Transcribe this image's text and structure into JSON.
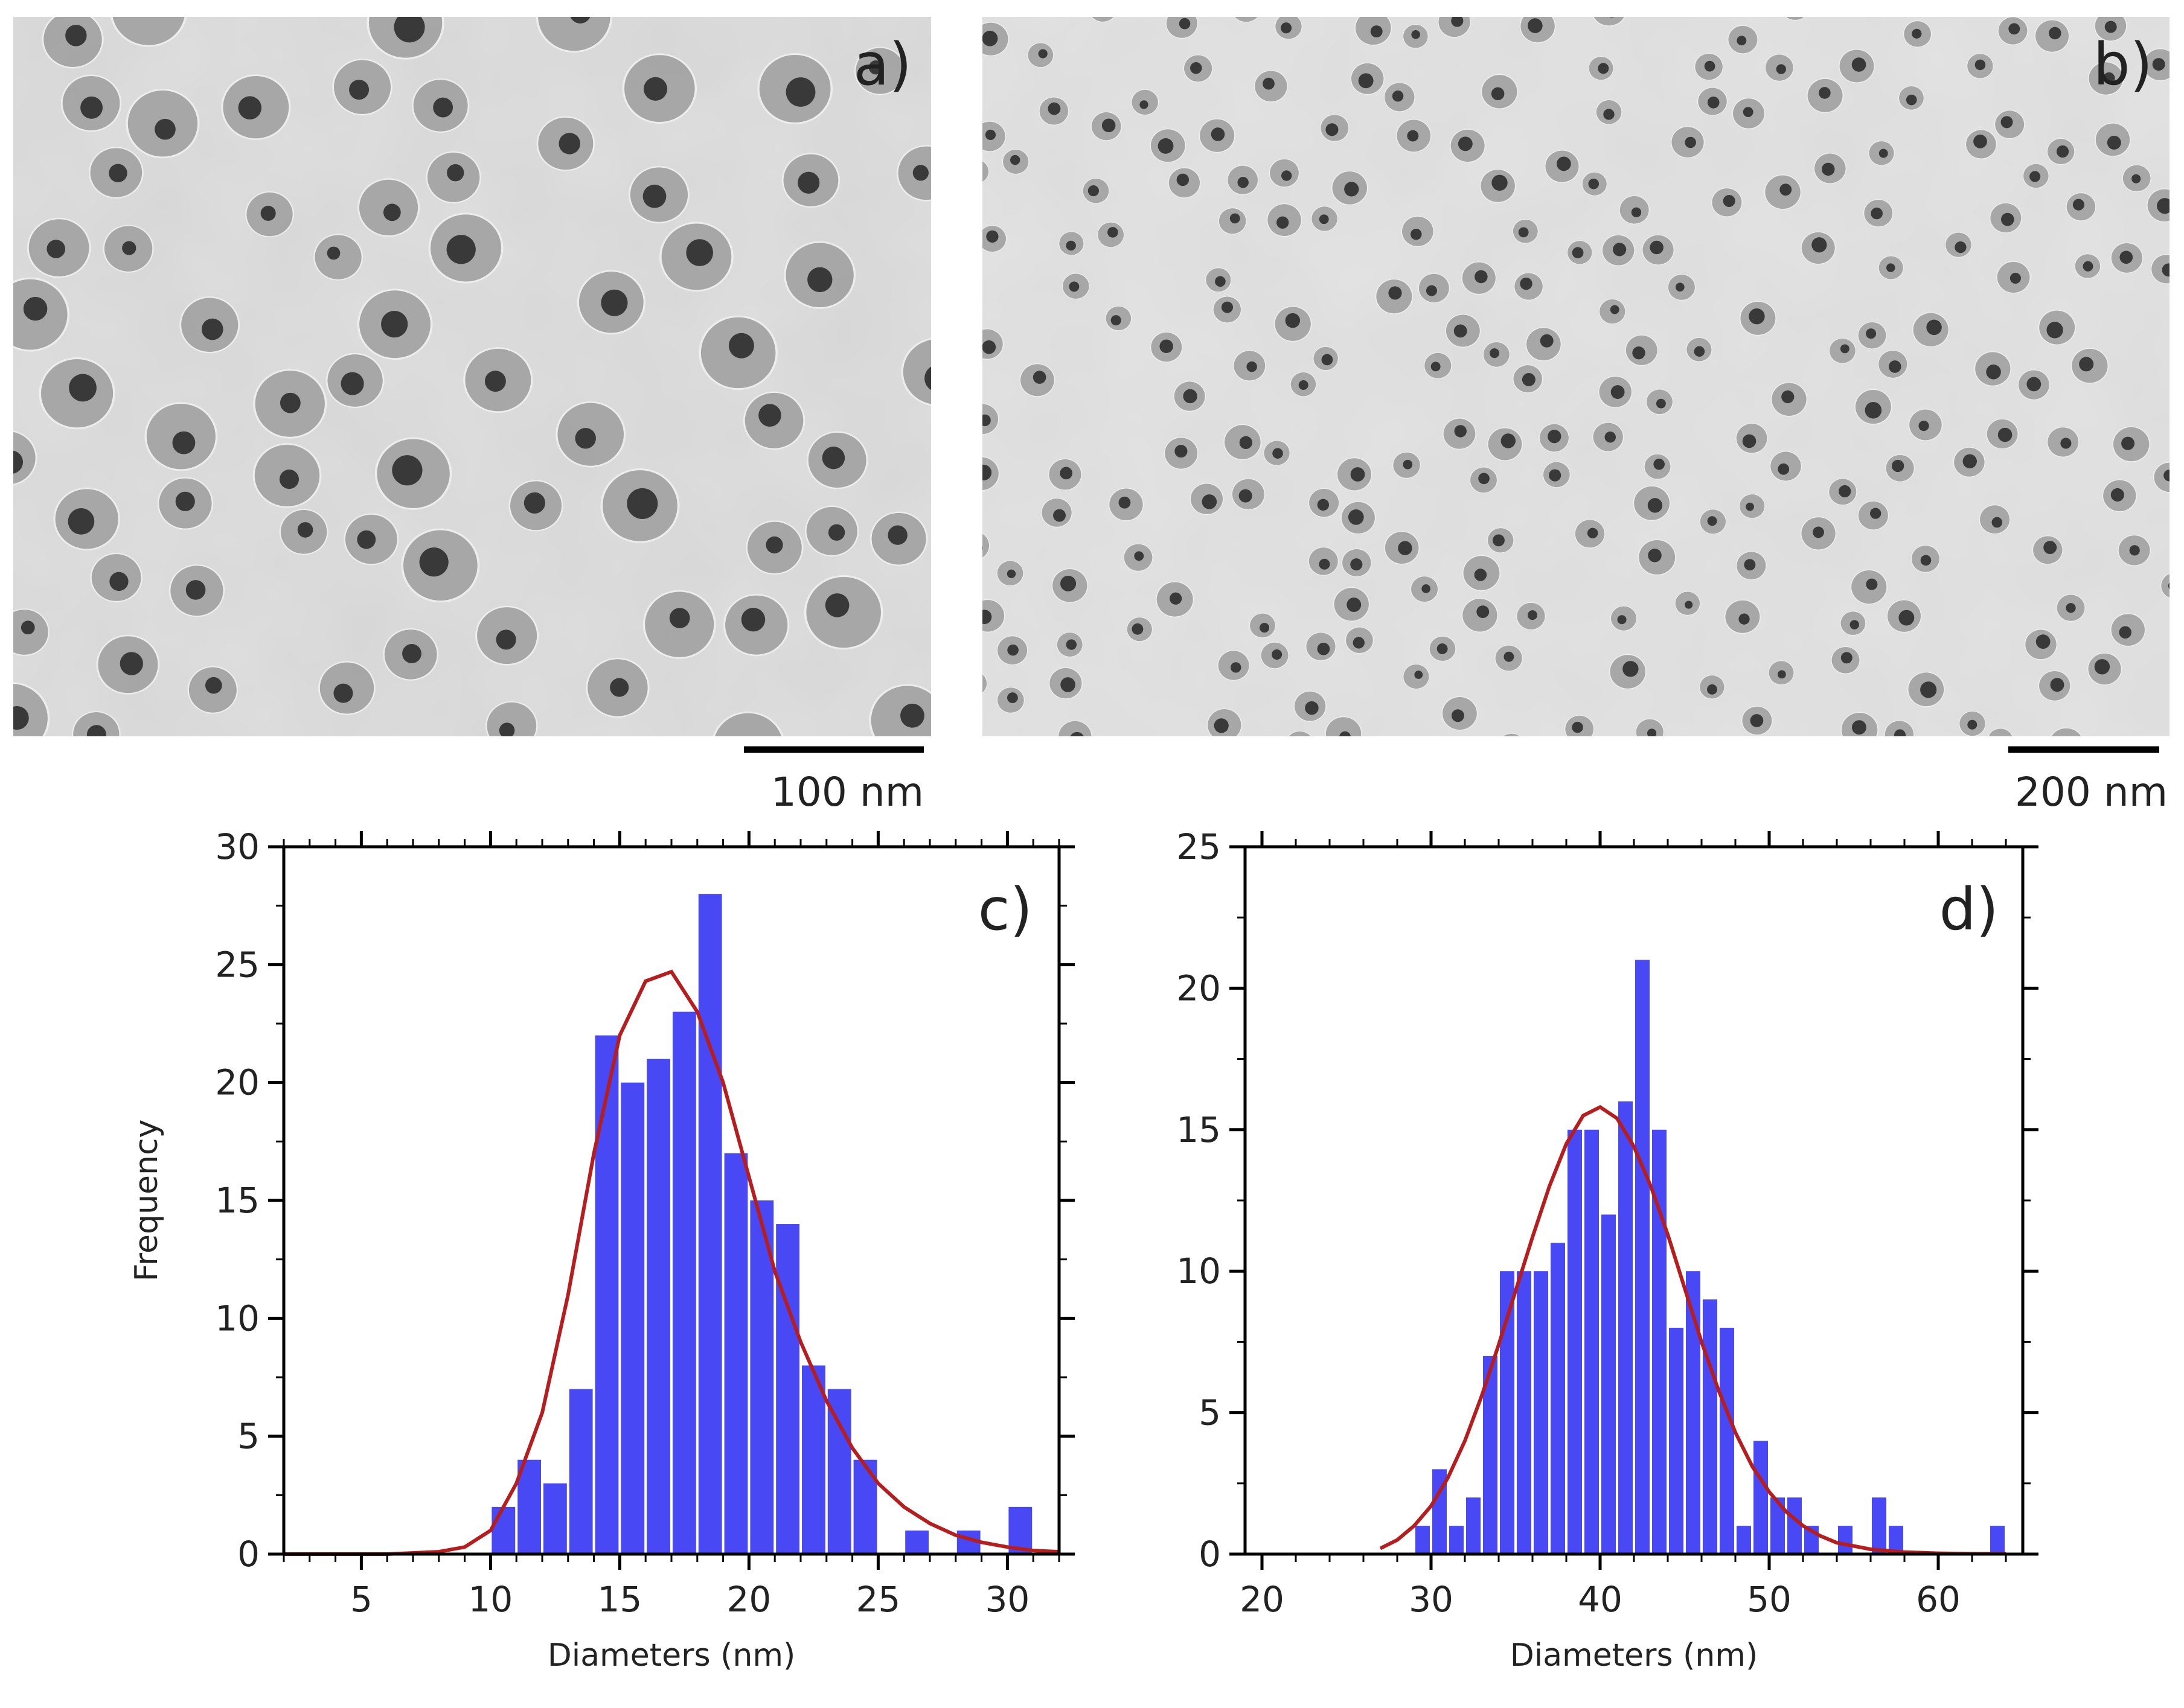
{
  "panels": {
    "a": {
      "label": "a)",
      "scale_bar": "100 nm"
    },
    "b": {
      "label": "b)",
      "scale_bar": "200 nm"
    }
  },
  "colors": {
    "bar": "#4848f4",
    "fit": "#b41e1e",
    "tem_bg": "#d6d6d6",
    "shell": "#9a9a9a",
    "core": "#262626"
  },
  "chart_data": [
    {
      "panel": "c)",
      "type": "bar",
      "xlabel": "Diameters (nm)",
      "ylabel": "Frequency",
      "xlim": [
        2,
        32
      ],
      "ylim": [
        0,
        30
      ],
      "xticks": [
        5,
        10,
        15,
        20,
        25,
        30
      ],
      "yticks": [
        0,
        5,
        10,
        15,
        20,
        25,
        30
      ],
      "bin_width": 1,
      "bins": [
        {
          "x": 10.5,
          "y": 2
        },
        {
          "x": 11.5,
          "y": 4
        },
        {
          "x": 12.5,
          "y": 3
        },
        {
          "x": 13.5,
          "y": 7
        },
        {
          "x": 14.5,
          "y": 22
        },
        {
          "x": 15.5,
          "y": 20
        },
        {
          "x": 16.5,
          "y": 21
        },
        {
          "x": 17.5,
          "y": 23
        },
        {
          "x": 18.5,
          "y": 28
        },
        {
          "x": 19.5,
          "y": 17
        },
        {
          "x": 20.5,
          "y": 15
        },
        {
          "x": 21.5,
          "y": 14
        },
        {
          "x": 22.5,
          "y": 8
        },
        {
          "x": 23.5,
          "y": 7
        },
        {
          "x": 24.5,
          "y": 4
        },
        {
          "x": 26.5,
          "y": 1
        },
        {
          "x": 28.5,
          "y": 1
        },
        {
          "x": 30.5,
          "y": 2
        }
      ],
      "fit": {
        "x": [
          2,
          4,
          6,
          8,
          9,
          10,
          11,
          12,
          13,
          14,
          15,
          16,
          17,
          18,
          19,
          20,
          21,
          22,
          23,
          24,
          25,
          26,
          27,
          28,
          29,
          30,
          31,
          32
        ],
        "y": [
          0,
          0,
          0,
          0.1,
          0.3,
          1,
          3,
          6,
          11,
          17,
          22,
          24.3,
          24.7,
          23,
          20,
          16,
          12,
          9,
          6.5,
          4.5,
          3,
          2,
          1.3,
          0.8,
          0.5,
          0.3,
          0.15,
          0.1
        ]
      }
    },
    {
      "panel": "d)",
      "type": "bar",
      "xlabel": "Diameters (nm)",
      "ylabel": "",
      "xlim": [
        19,
        65
      ],
      "ylim": [
        0,
        25
      ],
      "xticks": [
        20,
        30,
        40,
        50,
        60
      ],
      "yticks": [
        0,
        5,
        10,
        15,
        20,
        25
      ],
      "bin_width": 1,
      "bins": [
        {
          "x": 29.5,
          "y": 1
        },
        {
          "x": 30.5,
          "y": 3
        },
        {
          "x": 31.5,
          "y": 1
        },
        {
          "x": 32.5,
          "y": 2
        },
        {
          "x": 33.5,
          "y": 7
        },
        {
          "x": 34.5,
          "y": 10
        },
        {
          "x": 35.5,
          "y": 10
        },
        {
          "x": 36.5,
          "y": 10
        },
        {
          "x": 37.5,
          "y": 11
        },
        {
          "x": 38.5,
          "y": 15
        },
        {
          "x": 39.5,
          "y": 15
        },
        {
          "x": 40.5,
          "y": 12
        },
        {
          "x": 41.5,
          "y": 16
        },
        {
          "x": 42.5,
          "y": 21
        },
        {
          "x": 43.5,
          "y": 15
        },
        {
          "x": 44.5,
          "y": 8
        },
        {
          "x": 45.5,
          "y": 10
        },
        {
          "x": 46.5,
          "y": 9
        },
        {
          "x": 47.5,
          "y": 8
        },
        {
          "x": 48.5,
          "y": 1
        },
        {
          "x": 49.5,
          "y": 4
        },
        {
          "x": 50.5,
          "y": 2
        },
        {
          "x": 51.5,
          "y": 2
        },
        {
          "x": 52.5,
          "y": 1
        },
        {
          "x": 54.5,
          "y": 1
        },
        {
          "x": 56.5,
          "y": 2
        },
        {
          "x": 57.5,
          "y": 1
        },
        {
          "x": 63.5,
          "y": 1
        }
      ],
      "fit": {
        "x": [
          27,
          28,
          29,
          30,
          31,
          32,
          33,
          34,
          35,
          36,
          37,
          38,
          39,
          40,
          41,
          42,
          43,
          44,
          45,
          46,
          47,
          48,
          49,
          50,
          51,
          52,
          53,
          54,
          56,
          58,
          60,
          62,
          64
        ],
        "y": [
          0.2,
          0.5,
          1,
          1.7,
          2.7,
          4,
          5.6,
          7.4,
          9.3,
          11.2,
          13,
          14.5,
          15.5,
          15.8,
          15.4,
          14.4,
          13,
          11.3,
          9.4,
          7.5,
          5.8,
          4.3,
          3.1,
          2.2,
          1.5,
          1,
          0.65,
          0.4,
          0.17,
          0.07,
          0.03,
          0.01,
          0.01
        ]
      }
    }
  ]
}
